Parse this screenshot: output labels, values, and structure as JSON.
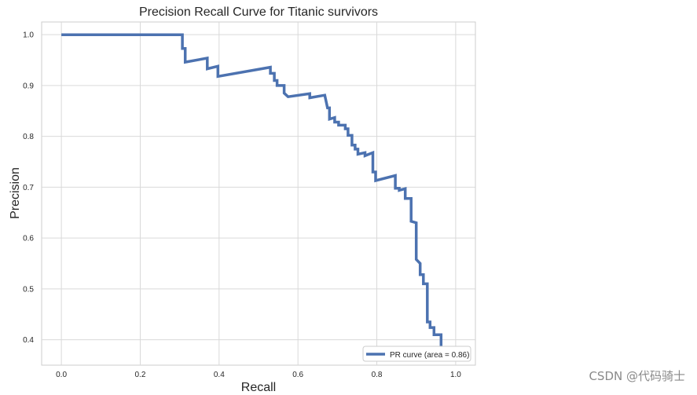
{
  "chart_data": {
    "type": "line",
    "title": "Precision Recall Curve for Titanic survivors",
    "xlabel": "Recall",
    "ylabel": "Precision",
    "xlim": [
      -0.05,
      1.05
    ],
    "ylim": [
      0.35,
      1.025
    ],
    "x_ticks": [
      0.0,
      0.2,
      0.4,
      0.6,
      0.8,
      1.0
    ],
    "x_tick_labels": [
      "0.0",
      "0.2",
      "0.4",
      "0.6",
      "0.8",
      "1.0"
    ],
    "y_ticks": [
      0.4,
      0.5,
      0.6,
      0.7,
      0.8,
      0.9,
      1.0
    ],
    "y_tick_labels": [
      "0.4",
      "0.5",
      "0.6",
      "0.7",
      "0.8",
      "0.9",
      "1.0"
    ],
    "grid": true,
    "legend_position": "lower-right",
    "series": [
      {
        "name": "PR curve (area = 0.86)",
        "color": "#4c72b0",
        "points": [
          [
            0.0,
            1.0
          ],
          [
            0.307,
            1.0
          ],
          [
            0.307,
            0.973
          ],
          [
            0.314,
            0.973
          ],
          [
            0.314,
            0.946
          ],
          [
            0.37,
            0.954
          ],
          [
            0.37,
            0.933
          ],
          [
            0.397,
            0.938
          ],
          [
            0.397,
            0.918
          ],
          [
            0.53,
            0.936
          ],
          [
            0.53,
            0.924
          ],
          [
            0.54,
            0.924
          ],
          [
            0.54,
            0.91
          ],
          [
            0.547,
            0.91
          ],
          [
            0.547,
            0.9
          ],
          [
            0.565,
            0.9
          ],
          [
            0.565,
            0.885
          ],
          [
            0.575,
            0.878
          ],
          [
            0.63,
            0.884
          ],
          [
            0.63,
            0.876
          ],
          [
            0.668,
            0.881
          ],
          [
            0.675,
            0.856
          ],
          [
            0.68,
            0.856
          ],
          [
            0.68,
            0.834
          ],
          [
            0.693,
            0.837
          ],
          [
            0.693,
            0.828
          ],
          [
            0.703,
            0.828
          ],
          [
            0.703,
            0.822
          ],
          [
            0.72,
            0.822
          ],
          [
            0.72,
            0.815
          ],
          [
            0.727,
            0.815
          ],
          [
            0.727,
            0.802
          ],
          [
            0.737,
            0.802
          ],
          [
            0.737,
            0.783
          ],
          [
            0.745,
            0.783
          ],
          [
            0.745,
            0.775
          ],
          [
            0.752,
            0.775
          ],
          [
            0.752,
            0.765
          ],
          [
            0.77,
            0.768
          ],
          [
            0.77,
            0.762
          ],
          [
            0.79,
            0.768
          ],
          [
            0.79,
            0.73
          ],
          [
            0.797,
            0.73
          ],
          [
            0.797,
            0.713
          ],
          [
            0.847,
            0.723
          ],
          [
            0.847,
            0.698
          ],
          [
            0.857,
            0.698
          ],
          [
            0.857,
            0.694
          ],
          [
            0.872,
            0.697
          ],
          [
            0.872,
            0.678
          ],
          [
            0.887,
            0.678
          ],
          [
            0.887,
            0.633
          ],
          [
            0.9,
            0.63
          ],
          [
            0.9,
            0.558
          ],
          [
            0.91,
            0.55
          ],
          [
            0.91,
            0.528
          ],
          [
            0.918,
            0.528
          ],
          [
            0.918,
            0.51
          ],
          [
            0.928,
            0.51
          ],
          [
            0.928,
            0.435
          ],
          [
            0.935,
            0.435
          ],
          [
            0.935,
            0.424
          ],
          [
            0.945,
            0.424
          ],
          [
            0.945,
            0.41
          ],
          [
            0.963,
            0.41
          ],
          [
            0.963,
            0.385
          ],
          [
            1.0,
            0.385
          ]
        ]
      }
    ]
  },
  "watermark": "CSDN @代码骑士"
}
